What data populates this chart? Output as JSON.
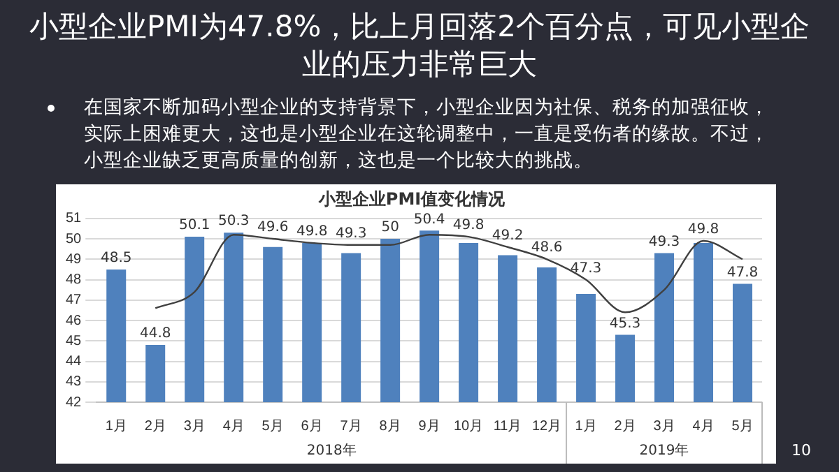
{
  "chart_data": {
    "type": "bar",
    "title": "小型企业PMI值变化情况",
    "categories": [
      "1月",
      "2月",
      "3月",
      "4月",
      "5月",
      "6月",
      "7月",
      "8月",
      "9月",
      "10月",
      "11月",
      "12月",
      "1月",
      "2月",
      "3月",
      "4月",
      "5月"
    ],
    "series": [
      {
        "color": "#4f81bd",
        "values": [
          48.5,
          44.8,
          50.1,
          50.3,
          49.6,
          49.8,
          49.3,
          50,
          50.4,
          49.8,
          49.2,
          48.6,
          47.3,
          45.3,
          49.3,
          49.8,
          47.8
        ],
        "value_labels": [
          "48.5",
          "44.8",
          "50.1",
          "50.3",
          "49.6",
          "49.8",
          "49.3",
          "50",
          "50.4",
          "49.8",
          "49.2",
          "48.6",
          "47.3",
          "45.3",
          "49.3",
          "49.8",
          "47.8"
        ]
      },
      {
        "type": "line",
        "color": "#404040",
        "values": [
          null,
          46.6,
          47.4,
          50.2,
          50.0,
          49.8,
          49.7,
          49.7,
          50.2,
          50.1,
          49.6,
          49.0,
          48.0,
          46.4,
          47.5,
          49.9,
          49.0
        ],
        "marker": "none"
      }
    ],
    "ylim": [
      42,
      51
    ],
    "yticks": [
      42,
      43,
      44,
      45,
      46,
      47,
      48,
      49,
      50,
      51
    ],
    "grid": "y",
    "legend": false,
    "annotations": [
      "小型企业PMI为47.8%，比上月回落2个百分点，可见小型企业的压力非常巨大",
      "在国家不断加码小型企业的支持背景下，小型企业因为社保、税务的加强征收，实际上困难更大，这也是小型企业在这轮调整中，一直是受伤者的缘故。不过，小型企业缺乏更高质量的创新，这也是一个比较大的挑战。",
      "2018年",
      "2019年",
      "10"
    ]
  }
}
